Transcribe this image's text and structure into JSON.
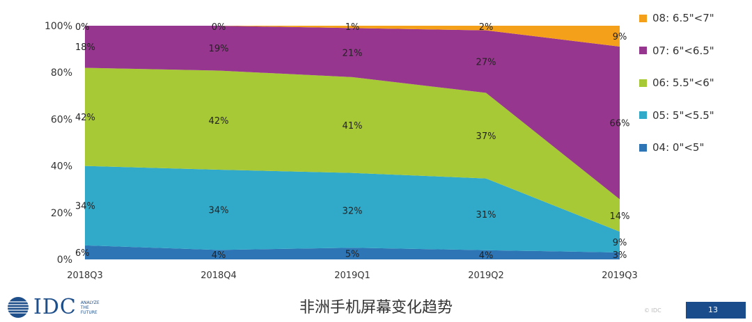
{
  "chart_data": {
    "type": "area",
    "stacked": true,
    "normalized": true,
    "categories": [
      "2018Q3",
      "2018Q4",
      "2019Q1",
      "2019Q2",
      "2019Q3"
    ],
    "series": [
      {
        "name": "04: 0\"<5\"",
        "color": "#2e75b6",
        "values": [
          6,
          4,
          5,
          4,
          3
        ],
        "labels": [
          "6%",
          "4%",
          "5%",
          "4%",
          "3%"
        ]
      },
      {
        "name": "05: 5\"<5.5\"",
        "color": "#31a9c9",
        "values": [
          34,
          34,
          32,
          31,
          9
        ],
        "labels": [
          "34%",
          "34%",
          "32%",
          "31%",
          "9%"
        ]
      },
      {
        "name": "06: 5.5\"<6\"",
        "color": "#a8c936",
        "values": [
          42,
          42,
          41,
          37,
          14
        ],
        "labels": [
          "42%",
          "42%",
          "41%",
          "37%",
          "14%"
        ]
      },
      {
        "name": "07: 6\"<6.5\"",
        "color": "#97368e",
        "values": [
          18,
          19,
          21,
          27,
          66
        ],
        "labels": [
          "18%",
          "19%",
          "21%",
          "27%",
          "66%"
        ]
      },
      {
        "name": "08: 6.5\"<7\"",
        "color": "#f5a01b",
        "values": [
          0,
          0,
          1,
          2,
          9
        ],
        "labels": [
          "0%",
          "0%",
          "1%",
          "2%",
          "9%"
        ]
      }
    ],
    "y_ticks": [
      "0%",
      "20%",
      "40%",
      "60%",
      "80%",
      "100%"
    ],
    "ylim": [
      0,
      100
    ],
    "legend_position": "right",
    "grid": false
  },
  "footer": {
    "title": "非洲手机屏幕变化趋势",
    "logo_text": "IDC",
    "tagline": [
      "ANALYZE",
      "THE",
      "FUTURE"
    ],
    "copyright": "© IDC",
    "page_number": "13"
  }
}
